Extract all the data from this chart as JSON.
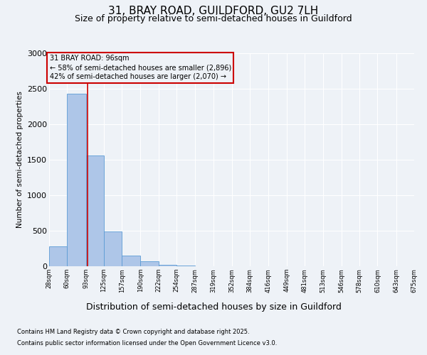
{
  "title1": "31, BRAY ROAD, GUILDFORD, GU2 7LH",
  "title2": "Size of property relative to semi-detached houses in Guildford",
  "xlabel": "Distribution of semi-detached houses by size in Guildford",
  "ylabel": "Number of semi-detached properties",
  "footnote1": "Contains HM Land Registry data © Crown copyright and database right 2025.",
  "footnote2": "Contains public sector information licensed under the Open Government Licence v3.0.",
  "annotation_title": "31 BRAY ROAD: 96sqm",
  "annotation_line1": "← 58% of semi-detached houses are smaller (2,896)",
  "annotation_line2": "42% of semi-detached houses are larger (2,070) →",
  "property_size_sqm": 96,
  "bin_edges": [
    28,
    60,
    93,
    125,
    157,
    190,
    222,
    254,
    287,
    319,
    352,
    384,
    416,
    449,
    481,
    513,
    546,
    578,
    610,
    643,
    675
  ],
  "bin_counts": [
    280,
    2430,
    1560,
    490,
    155,
    70,
    25,
    10,
    5,
    2,
    1,
    1,
    0,
    0,
    0,
    0,
    0,
    0,
    0,
    0
  ],
  "bar_color": "#aec6e8",
  "bar_edge_color": "#5b9bd5",
  "marker_color": "#cc0000",
  "annotation_box_color": "#cc0000",
  "ylim": [
    0,
    3000
  ],
  "yticks": [
    0,
    500,
    1000,
    1500,
    2000,
    2500,
    3000
  ],
  "background_color": "#eef2f7",
  "grid_color": "#ffffff",
  "title1_fontsize": 11,
  "title2_fontsize": 9
}
